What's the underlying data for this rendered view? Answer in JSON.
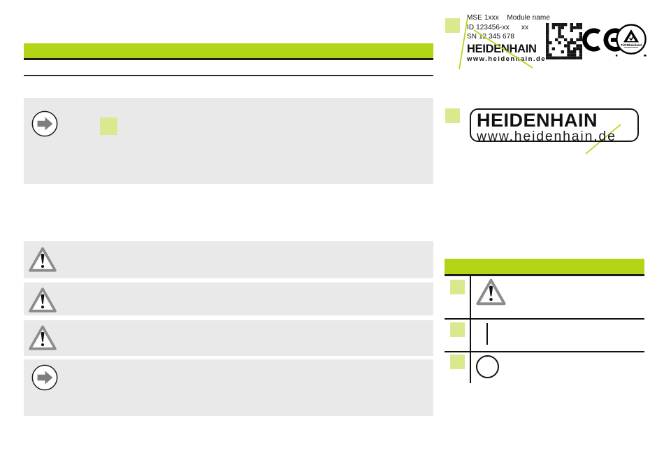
{
  "colors": {
    "accent_green": "#b2d616",
    "light_green": "#dbe98e",
    "note_gray": "#e9e9e9",
    "line_dark": "#1c1c1c"
  },
  "title_bar": {
    "text": ""
  },
  "note_box_top": {
    "icon": "arrow-right-circle-icon",
    "text": ""
  },
  "warning_boxes": [
    {
      "icon": "warning-triangle-icon",
      "text": ""
    },
    {
      "icon": "warning-triangle-icon",
      "text": ""
    },
    {
      "icon": "warning-triangle-icon",
      "text": ""
    }
  ],
  "note_box_bottom": {
    "icon": "arrow-right-circle-icon",
    "text": ""
  },
  "device_label": {
    "line1": "MSE 1xxx    Module name",
    "line2": "ID 123456-xx      xx",
    "line3": "SN 12 345 678",
    "brand": "HEIDENHAIN",
    "website": "www.heidenhain.de",
    "ce_mark": "CE",
    "tuv_mark": "TÜVRheinland",
    "datamatrix_icon": "datamatrix-code"
  },
  "logo_box": {
    "brand": "HEIDENHAIN",
    "website": "www.heidenhain.de"
  },
  "legend_table": {
    "header_text": "",
    "rows": [
      {
        "symbol": "warning-triangle"
      },
      {
        "symbol": "vertical-bar"
      },
      {
        "symbol": "circle-outline"
      }
    ]
  }
}
